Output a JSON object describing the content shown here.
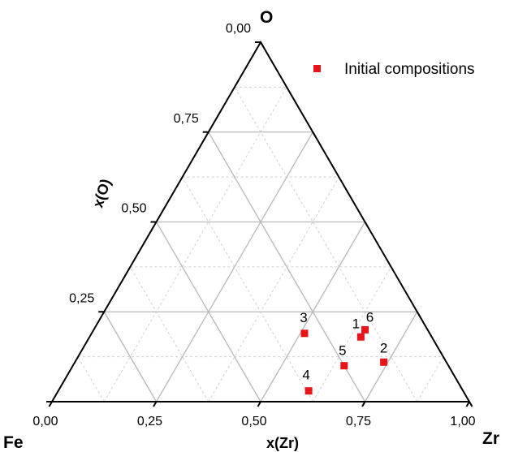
{
  "chart_data": {
    "type": "scatter",
    "subtype": "ternary",
    "corners": {
      "top": "O",
      "left": "Fe",
      "right": "Zr"
    },
    "bottom_axis": {
      "title": "x(Zr)",
      "ticks": [
        "0,00",
        "0,25",
        "0,50",
        "0,75",
        "1,00"
      ],
      "range": [
        0,
        1
      ]
    },
    "left_axis": {
      "title": "x(O)",
      "ticks": [
        "0,25",
        "0,50",
        "0,75",
        "0,00"
      ],
      "range": [
        0,
        1
      ]
    },
    "grid": true,
    "legend": {
      "placement": "top-right",
      "entries": [
        {
          "label": "Initial compositions",
          "color": "#e8141a"
        }
      ]
    },
    "series": [
      {
        "name": "Initial compositions",
        "color": "#e8141a",
        "points": [
          {
            "label": "1",
            "x_Zr": 0.65,
            "x_O": 0.18
          },
          {
            "label": "2",
            "x_Zr": 0.74,
            "x_O": 0.11
          },
          {
            "label": "3",
            "x_Zr": 0.51,
            "x_O": 0.19
          },
          {
            "label": "4",
            "x_Zr": 0.6,
            "x_O": 0.03
          },
          {
            "label": "5",
            "x_Zr": 0.65,
            "x_O": 0.1
          },
          {
            "label": "6",
            "x_Zr": 0.65,
            "x_O": 0.2
          }
        ]
      }
    ]
  }
}
